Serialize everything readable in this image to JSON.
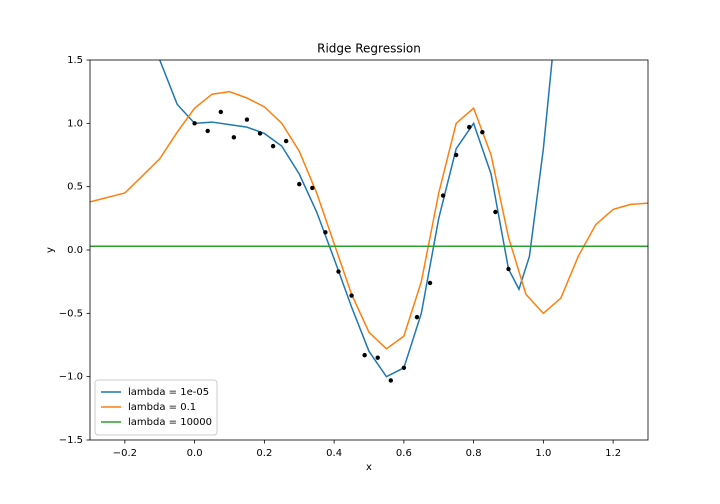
{
  "chart_data": {
    "type": "line",
    "title": "Ridge Regression",
    "x_label": "x",
    "y_label": "y",
    "xlim": [
      -0.3,
      1.3
    ],
    "ylim": [
      -1.5,
      1.5
    ],
    "xticks": [
      {
        "value": -0.2,
        "label": "−0.2"
      },
      {
        "value": 0,
        "label": "0.0"
      },
      0.2,
      0.4,
      0.6,
      0.8,
      {
        "value": 1,
        "label": "1.0"
      },
      1.2
    ],
    "yticks": [
      {
        "value": -1.5,
        "label": "−1.5"
      },
      {
        "value": -1,
        "label": "−1.0"
      },
      {
        "value": -0.5,
        "label": "−0.5"
      },
      {
        "value": 0,
        "label": "0.0"
      },
      0.5,
      {
        "value": 1,
        "label": "1.0"
      },
      1.5
    ],
    "grid": false,
    "legend": "lower left",
    "series": [
      {
        "name": "lambda = 1e-05",
        "color": "#1f77b4",
        "x": [
          -0.1,
          -0.05,
          0,
          0.05,
          0.1,
          0.15,
          0.2,
          0.25,
          0.3,
          0.35,
          0.4,
          0.45,
          0.5,
          0.55,
          0.6,
          0.65,
          0.7,
          0.75,
          0.8,
          0.85,
          0.9,
          0.93,
          0.96,
          1.0,
          1.025
        ],
        "values": [
          1.5,
          1.15,
          1.0,
          1.01,
          0.99,
          0.97,
          0.92,
          0.82,
          0.6,
          0.3,
          -0.07,
          -0.45,
          -0.8,
          -1.0,
          -0.93,
          -0.5,
          0.25,
          0.8,
          1.0,
          0.6,
          -0.15,
          -0.31,
          -0.05,
          0.8,
          1.5
        ]
      },
      {
        "name": "lambda = 0.1",
        "color": "#ff7f0e",
        "x": [
          -0.3,
          -0.2,
          -0.1,
          -0.05,
          0,
          0.05,
          0.1,
          0.15,
          0.2,
          0.25,
          0.3,
          0.35,
          0.4,
          0.45,
          0.5,
          0.55,
          0.6,
          0.65,
          0.7,
          0.75,
          0.8,
          0.85,
          0.9,
          0.95,
          1.0,
          1.05,
          1.1,
          1.15,
          1.2,
          1.25,
          1.3
        ],
        "values": [
          0.38,
          0.45,
          0.72,
          0.93,
          1.12,
          1.23,
          1.25,
          1.2,
          1.13,
          1.0,
          0.78,
          0.45,
          0.05,
          -0.35,
          -0.65,
          -0.78,
          -0.68,
          -0.25,
          0.45,
          1.0,
          1.12,
          0.75,
          0.1,
          -0.35,
          -0.5,
          -0.38,
          -0.05,
          0.2,
          0.32,
          0.36,
          0.37
        ]
      },
      {
        "name": "lambda = 10000",
        "color": "#2ca02c",
        "x": [
          -0.3,
          0.5,
          1.3
        ],
        "values": [
          0.03,
          0.03,
          0.03
        ]
      }
    ],
    "scatter": {
      "color": "#000000",
      "x": [
        0,
        0.0375,
        0.075,
        0.1125,
        0.15,
        0.1875,
        0.225,
        0.2625,
        0.3,
        0.3375,
        0.375,
        0.4125,
        0.45,
        0.4875,
        0.525,
        0.5625,
        0.6,
        0.6375,
        0.675,
        0.7125,
        0.75,
        0.7875,
        0.825,
        0.8625,
        0.9
      ],
      "y": [
        1.0,
        0.94,
        1.09,
        0.89,
        1.03,
        0.92,
        0.82,
        0.86,
        0.52,
        0.49,
        0.14,
        -0.17,
        -0.36,
        -0.83,
        -0.85,
        -1.03,
        -0.93,
        -0.53,
        -0.26,
        0.43,
        0.75,
        0.97,
        0.93,
        0.3,
        -0.15
      ]
    }
  }
}
